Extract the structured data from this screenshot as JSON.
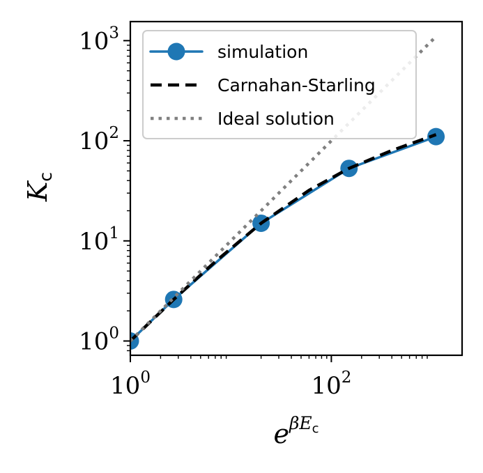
{
  "chart_data": {
    "type": "line",
    "title": "",
    "xlabel": {
      "base": "e",
      "sup_prefix": "βE",
      "sup_sub": "c"
    },
    "ylabel": {
      "main": "K",
      "sub": "c"
    },
    "x_scale": "log",
    "y_scale": "log",
    "xlim": [
      1,
      2000
    ],
    "ylim": [
      0.72,
      1550
    ],
    "x_ticks": [
      {
        "value": 1,
        "base": "10",
        "exp": "0"
      },
      {
        "value": 100,
        "base": "10",
        "exp": "2"
      }
    ],
    "y_ticks": [
      {
        "value": 1,
        "base": "10",
        "exp": "0"
      },
      {
        "value": 10,
        "base": "10",
        "exp": "1"
      },
      {
        "value": 100,
        "base": "10",
        "exp": "2"
      },
      {
        "value": 1000,
        "base": "10",
        "exp": "3"
      }
    ],
    "grid": false,
    "legend_position": "top-left",
    "series": [
      {
        "name": "simulation",
        "style": "solid-marker",
        "color": "#1f77b4",
        "x": [
          1,
          2.7,
          20,
          150,
          1100
        ],
        "y": [
          1,
          2.6,
          15,
          53,
          110
        ]
      },
      {
        "name": "Carnahan-Starling",
        "style": "dashed",
        "color": "#000000",
        "x": [
          1,
          2.7,
          7,
          20,
          60,
          150,
          400,
          1100
        ],
        "y": [
          1,
          2.6,
          6.2,
          15,
          32,
          53,
          80,
          115
        ]
      },
      {
        "name": "Ideal solution",
        "style": "dotted",
        "color": "#808080",
        "x": [
          1,
          1100
        ],
        "y": [
          1,
          1100
        ]
      }
    ]
  }
}
